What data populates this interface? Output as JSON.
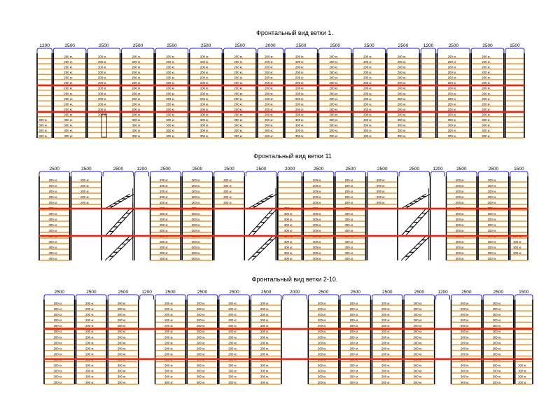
{
  "colors": {
    "upright": "#000000",
    "beam": "#f7941d",
    "deck": "#ff1a00",
    "dimension": "#1a1aff",
    "stair": "#000000"
  },
  "views": [
    {
      "title": "Фронтальный вид ветки 1.",
      "dimensions": [
        "1200",
        "2500",
        "2500",
        "2500",
        "2500",
        "2500",
        "2500",
        "2000",
        "2500",
        "2500",
        "2500",
        "2500",
        "1200",
        "2500",
        "2500",
        "1500"
      ],
      "bays": [
        {
          "type": "rack",
          "labels": [
            "",
            "",
            "",
            "",
            "",
            "",
            "",
            "",
            "",
            "",
            "",
            "",
            "300 кг.",
            "300 кг.",
            "300 кг.",
            "300 кг."
          ]
        },
        {
          "type": "rack",
          "labels": [
            "200 кг.",
            "200 кг.",
            "200 кг.",
            "200 кг.",
            "200 кг.",
            "200 кг.",
            "200 кг.",
            "200 кг.",
            "200 кг.",
            "200 кг.",
            "200 кг.",
            "200 кг.",
            "300 кг.",
            "300 кг.",
            "300 кг.",
            "300 кг."
          ]
        },
        {
          "type": "rack_door",
          "labels": [
            "200 кг.",
            "200 кг.",
            "200 кг.",
            "200 кг.",
            "200 кг.",
            "200 кг.",
            "200 кг.",
            "200 кг.",
            "200 кг.",
            "200 кг.",
            "200 кг.",
            "200 кг."
          ]
        },
        {
          "type": "rack",
          "labels": [
            "200 кг.",
            "200 кг.",
            "200 кг.",
            "200 кг.",
            "200 кг.",
            "200 кг.",
            "200 кг.",
            "200 кг.",
            "200 кг.",
            "200 кг.",
            "200 кг.",
            "200 кг.",
            "300 кг.",
            "300 кг.",
            "300 кг.",
            "300 кг."
          ]
        },
        {
          "type": "rack",
          "labels": [
            "200 кг.",
            "200 кг.",
            "200 кг.",
            "200 кг.",
            "200 кг.",
            "200 кг.",
            "200 кг.",
            "200 кг.",
            "200 кг.",
            "200 кг.",
            "200 кг.",
            "200 кг.",
            "300 кг.",
            "300 кг.",
            "300 кг.",
            "300 кг."
          ]
        },
        {
          "type": "rack",
          "labels": [
            "200 кг.",
            "200 кг.",
            "200 кг.",
            "200 кг.",
            "200 кг.",
            "200 кг.",
            "200 кг.",
            "200 кг.",
            "200 кг.",
            "200 кг.",
            "200 кг.",
            "200 кг.",
            "300 кг.",
            "300 кг.",
            "300 кг.",
            "300 кг."
          ]
        },
        {
          "type": "rack",
          "labels": [
            "200 кг.",
            "200 кг.",
            "200 кг.",
            "200 кг.",
            "200 кг.",
            "200 кг.",
            "200 кг.",
            "200 кг.",
            "200 кг.",
            "200 кг.",
            "200 кг.",
            "200 кг.",
            "300 кг.",
            "300 кг.",
            "300 кг.",
            "300 кг."
          ]
        },
        {
          "type": "rack",
          "labels": [
            "200 кг.",
            "200 кг.",
            "200 кг.",
            "200 кг.",
            "200 кг.",
            "200 кг.",
            "200 кг.",
            "200 кг.",
            "200 кг.",
            "200 кг.",
            "200 кг.",
            "200 кг.",
            "300 кг.",
            "300 кг.",
            "300 кг.",
            "300 кг."
          ]
        },
        {
          "type": "rack",
          "labels": [
            "200 кг.",
            "200 кг.",
            "200 кг.",
            "200 кг.",
            "200 кг.",
            "200 кг.",
            "200 кг.",
            "200 кг.",
            "200 кг.",
            "200 кг.",
            "200 кг.",
            "200 кг.",
            "300 кг.",
            "300 кг.",
            "300 кг.",
            "300 кг."
          ]
        },
        {
          "type": "rack",
          "labels": [
            "200 кг.",
            "200 кг.",
            "200 кг.",
            "200 кг.",
            "200 кг.",
            "200 кг.",
            "200 кг.",
            "200 кг.",
            "200 кг.",
            "200 кг.",
            "200 кг.",
            "200 кг.",
            "300 кг.",
            "300 кг.",
            "300 кг.",
            "300 кг."
          ]
        },
        {
          "type": "rack",
          "labels": [
            "200 кг.",
            "200 кг.",
            "200 кг.",
            "200 кг.",
            "200 кг.",
            "200 кг.",
            "200 кг.",
            "200 кг.",
            "200 кг.",
            "200 кг.",
            "200 кг.",
            "200 кг.",
            "300 кг.",
            "300 кг.",
            "300 кг.",
            "300 кг."
          ]
        },
        {
          "type": "rack",
          "labels": [
            "200 кг.",
            "200 кг.",
            "200 кг.",
            "200 кг.",
            "200 кг.",
            "200 кг.",
            "200 кг.",
            "200 кг.",
            "200 кг.",
            "200 кг.",
            "200 кг.",
            "200 кг.",
            "300 кг.",
            "300 кг.",
            "300 кг.",
            "300 кг."
          ]
        },
        {
          "type": "rack",
          "labels": [
            "",
            "",
            "",
            "",
            "",
            "",
            "",
            "",
            "",
            "",
            "",
            "",
            "",
            "",
            "",
            ""
          ]
        },
        {
          "type": "rack",
          "labels": [
            "200 кг.",
            "200 кг.",
            "200 кг.",
            "200 кг.",
            "200 кг.",
            "200 кг.",
            "200 кг.",
            "200 кг.",
            "200 кг.",
            "200 кг.",
            "200 кг.",
            "200 кг.",
            "300 кг.",
            "300 кг.",
            "300 кг.",
            "300 кг."
          ]
        },
        {
          "type": "rack",
          "labels": [
            "200 кг.",
            "200 кг.",
            "200 кг.",
            "200 кг.",
            "200 кг.",
            "200 кг.",
            "200 кг.",
            "200 кг.",
            "200 кг.",
            "200 кг.",
            "200 кг.",
            "200 кг.",
            "300 кг.",
            "300 кг.",
            "300 кг.",
            "300 кг."
          ]
        },
        {
          "type": "rack",
          "labels": [
            "",
            "",
            "",
            "",
            "",
            "",
            "",
            "",
            "",
            "",
            "",
            "",
            "",
            "",
            "",
            ""
          ]
        }
      ]
    },
    {
      "title": "Фронтальный вид ветки 11",
      "dimensions": [
        "2500",
        "2500",
        "2500",
        "1200",
        "2500",
        "2500",
        "2500",
        "2500",
        "2000",
        "2500",
        "2500",
        "2500",
        "2500",
        "1200",
        "2500",
        "2500",
        "1500"
      ],
      "bays": [
        {
          "type": "rack",
          "labels": [
            "200 кг.",
            "200 кг.",
            "200 кг.",
            "200 кг.",
            "200 кг.",
            "300 кг.",
            "300 кг.",
            "300 кг.",
            "300 кг.",
            "300 кг.",
            "300 кг.",
            "300 кг.",
            "300 кг.",
            "300 кг.",
            "300 кг."
          ]
        },
        {
          "type": "rack_top",
          "labels": [
            "200 кг.",
            "200 кг.",
            "200 кг.",
            "200 кг.",
            "200 кг."
          ]
        },
        {
          "type": "stair",
          "labels": []
        },
        {
          "type": "gap",
          "labels": []
        },
        {
          "type": "rack",
          "labels": [
            "200 кг.",
            "200 кг.",
            "200 кг.",
            "200 кг.",
            "200 кг.",
            "300 кг.",
            "300 кг.",
            "300 кг.",
            "300 кг.",
            "300 кг.",
            "300 кг.",
            "300 кг.",
            "300 кг.",
            "300 кг.",
            "300 кг."
          ]
        },
        {
          "type": "rack",
          "labels": [
            "200 кг.",
            "200 кг.",
            "200 кг.",
            "200 кг.",
            "200 кг.",
            "300 кг.",
            "300 кг.",
            "300 кг.",
            "300 кг.",
            "300 кг.",
            "300 кг.",
            "300 кг.",
            "300 кг.",
            "300 кг.",
            "300 кг."
          ]
        },
        {
          "type": "rack_top",
          "labels": [
            "200 кг.",
            "200 кг.",
            "200 кг.",
            "200 кг.",
            "200 кг."
          ]
        },
        {
          "type": "stair",
          "labels": []
        },
        {
          "type": "rack",
          "labels": [
            "",
            "",
            "",
            "",
            "",
            "300 кг.",
            "300 кг.",
            "300 кг.",
            "300 кг.",
            "300 кг.",
            "300 кг.",
            "300 кг.",
            "300 кг.",
            "300 кг.",
            "300 кг."
          ]
        },
        {
          "type": "rack",
          "labels": [
            "200 кг.",
            "200 кг.",
            "200 кг.",
            "200 кг.",
            "200 кг.",
            "300 кг.",
            "300 кг.",
            "300 кг.",
            "300 кг.",
            "300 кг.",
            "300 кг.",
            "300 кг.",
            "300 кг.",
            "300 кг.",
            "300 кг."
          ]
        },
        {
          "type": "rack",
          "labels": [
            "200 кг.",
            "200 кг.",
            "200 кг.",
            "200 кг.",
            "200 кг.",
            "300 кг.",
            "300 кг.",
            "300 кг.",
            "300 кг.",
            "300 кг.",
            "300 кг.",
            "300 кг.",
            "300 кг.",
            "300 кг.",
            "300 кг."
          ]
        },
        {
          "type": "rack_top",
          "labels": [
            "200 кг.",
            "200 кг.",
            "200 кг.",
            "200 кг.",
            "200 кг."
          ]
        },
        {
          "type": "stair",
          "labels": []
        },
        {
          "type": "gap",
          "labels": []
        },
        {
          "type": "rack",
          "labels": [
            "200 кг.",
            "200 кг.",
            "200 кг.",
            "200 кг.",
            "200 кг.",
            "300 кг.",
            "300 кг.",
            "300 кг.",
            "300 кг.",
            "300 кг.",
            "300 кг.",
            "300 кг.",
            "300 кг.",
            "300 кг.",
            "300 кг."
          ]
        },
        {
          "type": "rack",
          "labels": [
            "200 кг.",
            "200 кг.",
            "200 кг.",
            "200 кг.",
            "200 кг.",
            "300 кг.",
            "300 кг.",
            "300 кг.",
            "300 кг.",
            "300 кг.",
            "300 кг.",
            "300 кг.",
            "300 кг.",
            "300 кг.",
            "300 кг."
          ]
        },
        {
          "type": "rack_low",
          "labels": [
            "",
            "",
            "",
            "",
            "",
            "",
            "",
            "",
            "",
            "",
            "300 кг.",
            "300 кг.",
            "300 кг.",
            "300 кг.",
            ""
          ]
        }
      ]
    },
    {
      "title": "Фронтальный вид ветки 2-10.",
      "dimensions": [
        "2500",
        "2500",
        "2500",
        "1200",
        "2500",
        "2500",
        "2500",
        "2500",
        "2000",
        "2500",
        "2500",
        "2500",
        "2500",
        "1200",
        "2500",
        "2500",
        "1500"
      ],
      "bays": [
        {
          "type": "rack",
          "labels": [
            "200 кг.",
            "200 кг.",
            "200 кг.",
            "200 кг.",
            "200 кг.",
            "200 кг.",
            "200 кг.",
            "200 кг.",
            "200 кг.",
            "200 кг.",
            "300 кг.",
            "300 кг.",
            "300 кг.",
            "300 кг.",
            "300 кг."
          ]
        },
        {
          "type": "rack",
          "labels": [
            "200 кг.",
            "200 кг.",
            "200 кг.",
            "200 кг.",
            "200 кг.",
            "200 кг.",
            "200 кг.",
            "200 кг.",
            "200 кг.",
            "200 кг.",
            "300 кг.",
            "300 кг.",
            "300 кг.",
            "300 кг.",
            "300 кг."
          ]
        },
        {
          "type": "rack",
          "labels": [
            "200 кг.",
            "200 кг.",
            "200 кг.",
            "200 кг.",
            "200 кг.",
            "200 кг.",
            "200 кг.",
            "200 кг.",
            "200 кг.",
            "200 кг.",
            "300 кг.",
            "300 кг.",
            "300 кг.",
            "300 кг.",
            "300 кг."
          ]
        },
        {
          "type": "gap",
          "labels": []
        },
        {
          "type": "rack",
          "labels": [
            "200 кг.",
            "200 кг.",
            "200 кг.",
            "200 кг.",
            "200 кг.",
            "200 кг.",
            "200 кг.",
            "200 кг.",
            "200 кг.",
            "200 кг.",
            "300 кг.",
            "300 кг.",
            "300 кг.",
            "300 кг.",
            "300 кг."
          ]
        },
        {
          "type": "rack",
          "labels": [
            "200 кг.",
            "200 кг.",
            "200 кг.",
            "200 кг.",
            "200 кг.",
            "200 кг.",
            "200 кг.",
            "200 кг.",
            "200 кг.",
            "200 кг.",
            "300 кг.",
            "300 кг.",
            "300 кг.",
            "300 кг.",
            "300 кг."
          ]
        },
        {
          "type": "rack",
          "labels": [
            "200 кг.",
            "200 кг.",
            "200 кг.",
            "200 кг.",
            "200 кг.",
            "200 кг.",
            "200 кг.",
            "200 кг.",
            "200 кг.",
            "200 кг.",
            "300 кг.",
            "300 кг.",
            "300 кг.",
            "300 кг.",
            "300 кг."
          ]
        },
        {
          "type": "rack",
          "labels": [
            "200 кг.",
            "200 кг.",
            "200 кг.",
            "200 кг.",
            "200 кг.",
            "200 кг.",
            "200 кг.",
            "200 кг.",
            "200 кг.",
            "200 кг.",
            "300 кг.",
            "300 кг.",
            "300 кг.",
            "300 кг.",
            "300 кг."
          ]
        },
        {
          "type": "gap",
          "labels": []
        },
        {
          "type": "rack",
          "labels": [
            "200 кг.",
            "200 кг.",
            "200 кг.",
            "200 кг.",
            "200 кг.",
            "200 кг.",
            "200 кг.",
            "200 кг.",
            "200 кг.",
            "200 кг.",
            "300 кг.",
            "300 кг.",
            "300 кг.",
            "300 кг.",
            "300 кг."
          ]
        },
        {
          "type": "rack",
          "labels": [
            "200 кг.",
            "200 кг.",
            "200 кг.",
            "200 кг.",
            "200 кг.",
            "200 кг.",
            "200 кг.",
            "200 кг.",
            "200 кг.",
            "200 кг.",
            "300 кг.",
            "300 кг.",
            "300 кг.",
            "300 кг.",
            "300 кг."
          ]
        },
        {
          "type": "rack",
          "labels": [
            "200 кг.",
            "200 кг.",
            "200 кг.",
            "200 кг.",
            "200 кг.",
            "200 кг.",
            "200 кг.",
            "200 кг.",
            "200 кг.",
            "200 кг.",
            "300 кг.",
            "300 кг.",
            "300 кг.",
            "300 кг.",
            "300 кг."
          ]
        },
        {
          "type": "rack",
          "labels": [
            "200 кг.",
            "200 кг.",
            "200 кг.",
            "200 кг.",
            "200 кг.",
            "200 кг.",
            "200 кг.",
            "200 кг.",
            "200 кг.",
            "200 кг.",
            "300 кг.",
            "300 кг.",
            "300 кг.",
            "300 кг.",
            "300 кг."
          ]
        },
        {
          "type": "gap",
          "labels": []
        },
        {
          "type": "rack",
          "labels": [
            "200 кг.",
            "200 кг.",
            "200 кг.",
            "200 кг.",
            "200 кг.",
            "200 кг.",
            "200 кг.",
            "200 кг.",
            "200 кг.",
            "200 кг.",
            "300 кг.",
            "300 кг.",
            "300 кг.",
            "300 кг.",
            "300 кг."
          ]
        },
        {
          "type": "rack",
          "labels": [
            "200 кг.",
            "200 кг.",
            "200 кг.",
            "200 кг.",
            "200 кг.",
            "200 кг.",
            "200 кг.",
            "200 кг.",
            "200 кг.",
            "200 кг.",
            "300 кг.",
            "300 кг.",
            "300 кг.",
            "300 кг.",
            "300 кг."
          ]
        },
        {
          "type": "rack_low",
          "labels": [
            "",
            "",
            "",
            "",
            "",
            "",
            "",
            "",
            "",
            "",
            "",
            "300 кг.",
            "300 кг.",
            "300 кг.",
            "300 кг."
          ]
        }
      ]
    }
  ]
}
